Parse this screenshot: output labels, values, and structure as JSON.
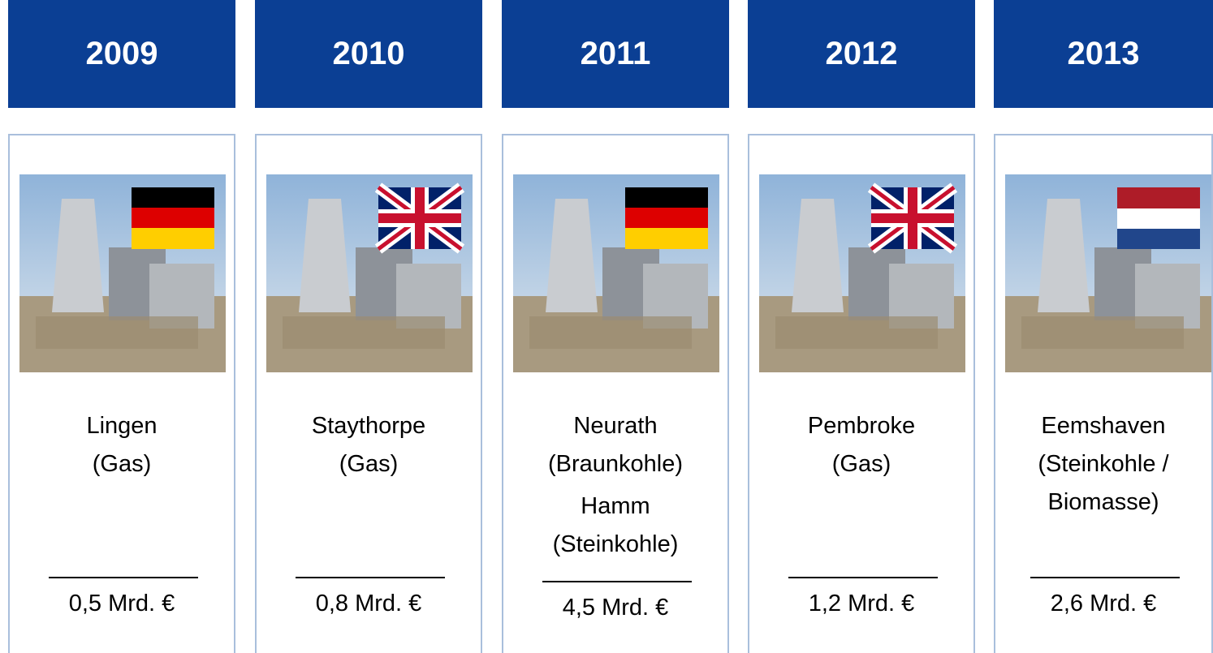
{
  "columns": [
    {
      "year": "2009",
      "plants": [
        [
          "Lingen",
          "(Gas)"
        ]
      ],
      "amount": "0,5 Mrd. €"
    },
    {
      "year": "2010",
      "plants": [
        [
          "Staythorpe",
          "(Gas)"
        ]
      ],
      "amount": "0,8 Mrd. €"
    },
    {
      "year": "2011",
      "plants": [
        [
          "Neurath",
          "(Braunkohle)"
        ],
        [
          "Hamm",
          "(Steinkohle)"
        ]
      ],
      "amount": "4,5 Mrd. €"
    },
    {
      "year": "2012",
      "plants": [
        [
          "Pembroke",
          "(Gas)"
        ]
      ],
      "amount": "1,2 Mrd. €"
    },
    {
      "year": "2013",
      "plants": [
        [
          "Eemshaven",
          "(Steinkohle /",
          "Biomasse)"
        ]
      ],
      "amount": "2,6 Mrd. €"
    }
  ]
}
